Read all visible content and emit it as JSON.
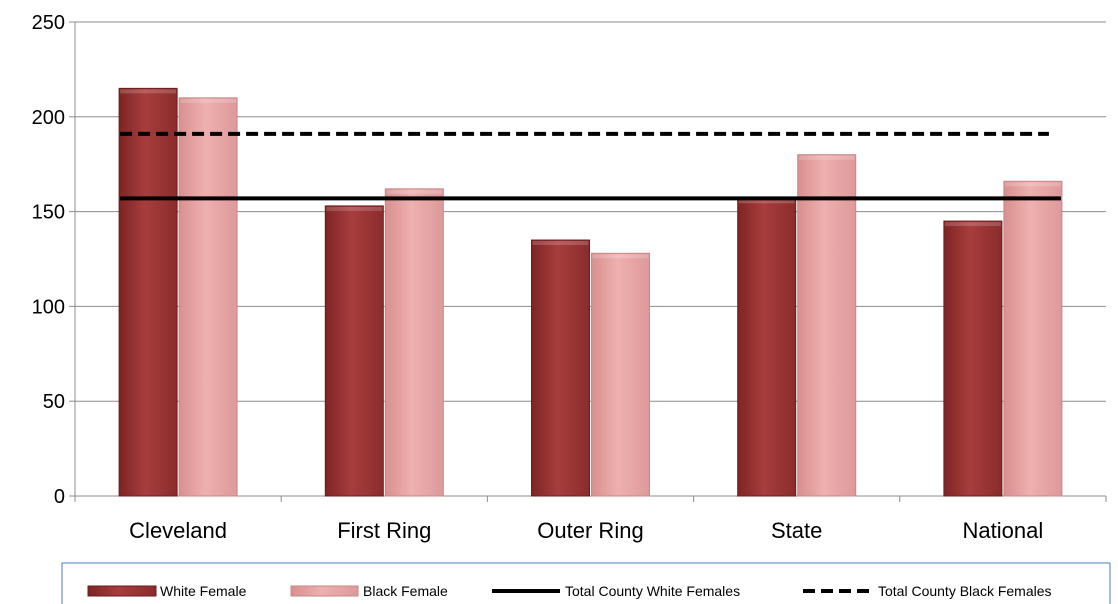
{
  "chart_data": {
    "type": "bar",
    "title": "",
    "xlabel": "",
    "ylabel": "",
    "categories": [
      "Cleveland",
      "First Ring",
      "Outer Ring",
      "State",
      "National"
    ],
    "ylim": [
      0,
      250
    ],
    "yticks": [
      0,
      50,
      100,
      150,
      200,
      250
    ],
    "grid": true,
    "series": [
      {
        "name": "White Female",
        "color": "#9b3535",
        "values": [
          215,
          153,
          135,
          157,
          145
        ]
      },
      {
        "name": "Black Female",
        "color": "#e6a1a1",
        "values": [
          210,
          162,
          128,
          180,
          166
        ]
      }
    ],
    "reference_lines": [
      {
        "name": "Total County White Females",
        "value": 157,
        "style": "solid",
        "color": "#000000"
      },
      {
        "name": "Total County Black Females",
        "value": 191,
        "style": "dashed",
        "color": "#000000"
      }
    ],
    "legend_position": "bottom"
  }
}
